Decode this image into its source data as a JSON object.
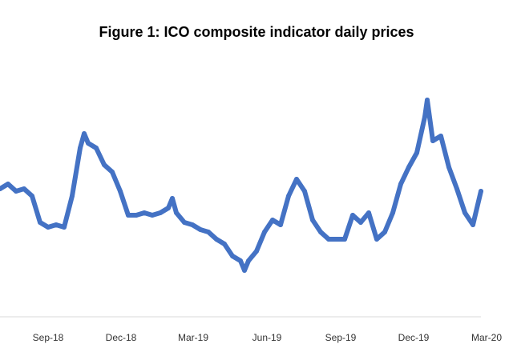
{
  "chart_data": {
    "type": "line",
    "title": "Figure 1: ICO composite indicator daily prices",
    "xlabel": "",
    "ylabel": "",
    "x_tick_labels": [
      "Sep-18",
      "Dec-18",
      "Mar-19",
      "Jun-19",
      "Sep-19",
      "Dec-19",
      "Mar-20"
    ],
    "x_tick_dates": [
      "2018-09-01",
      "2018-12-01",
      "2019-03-01",
      "2019-06-01",
      "2019-09-01",
      "2019-12-01",
      "2020-03-01"
    ],
    "xlim": [
      "2018-07-03",
      "2020-02-23"
    ],
    "ylim": [
      0,
      100
    ],
    "y_axis_visible": false,
    "grid": false,
    "line_color": "#4472C4",
    "series": [
      {
        "x": [
          "2018-07-03",
          "2018-07-13",
          "2018-07-23",
          "2018-08-02",
          "2018-08-12",
          "2018-08-22",
          "2018-09-01",
          "2018-09-11",
          "2018-09-21",
          "2018-10-01",
          "2018-10-11",
          "2018-10-16",
          "2018-10-21",
          "2018-10-31",
          "2018-11-10",
          "2018-11-20",
          "2018-11-30",
          "2018-12-10",
          "2018-12-20",
          "2018-12-30",
          "2019-01-09",
          "2019-01-19",
          "2019-01-29",
          "2019-02-03",
          "2019-02-08",
          "2019-02-18",
          "2019-02-28",
          "2019-03-10",
          "2019-03-20",
          "2019-03-30",
          "2019-04-09",
          "2019-04-19",
          "2019-04-29",
          "2019-05-04",
          "2019-05-09",
          "2019-05-19",
          "2019-05-29",
          "2019-06-08",
          "2019-06-18",
          "2019-06-28",
          "2019-07-08",
          "2019-07-18",
          "2019-07-28",
          "2019-08-07",
          "2019-08-17",
          "2019-08-27",
          "2019-09-06",
          "2019-09-16",
          "2019-09-26",
          "2019-10-06",
          "2019-10-16",
          "2019-10-26",
          "2019-11-05",
          "2019-11-15",
          "2019-11-25",
          "2019-12-05",
          "2019-12-15",
          "2019-12-18",
          "2019-12-25",
          "2020-01-04",
          "2020-01-14",
          "2020-01-24",
          "2020-02-03",
          "2020-02-13",
          "2020-02-23"
        ],
        "y": [
          48,
          50,
          47,
          48,
          45,
          34,
          32,
          33,
          32,
          45,
          65,
          71,
          67,
          65,
          58,
          55,
          47,
          37,
          37,
          38,
          37,
          38,
          40,
          44,
          38,
          34,
          33,
          31,
          30,
          27,
          25,
          20,
          18,
          14,
          18,
          22,
          30,
          35,
          33,
          45,
          52,
          47,
          35,
          30,
          27,
          27,
          27,
          37,
          34,
          38,
          27,
          30,
          38,
          50,
          57,
          63,
          78,
          85,
          68,
          70,
          57,
          48,
          38,
          33,
          47
        ]
      }
    ]
  }
}
